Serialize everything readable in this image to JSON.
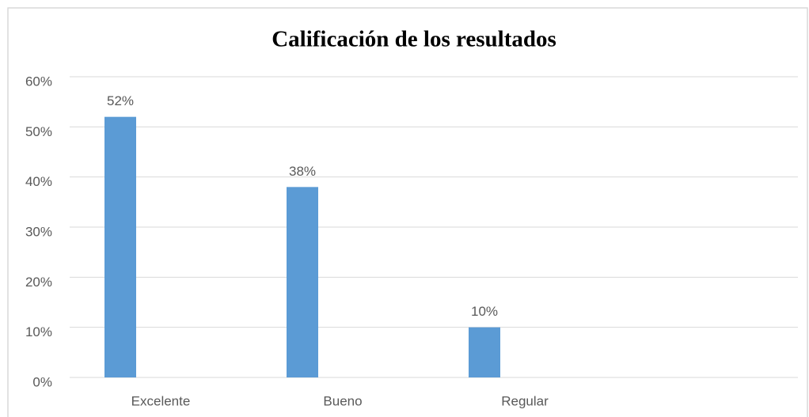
{
  "chart_data": {
    "type": "bar",
    "title": "Calificación de los resultados",
    "categories": [
      "Excelente",
      "Bueno",
      "Regular",
      null
    ],
    "values": [
      52,
      38,
      10,
      null
    ],
    "value_labels": [
      "52%",
      "38%",
      "10%",
      null
    ],
    "color": "#5b9bd5",
    "ylim": [
      0,
      60
    ],
    "yticks": [
      {
        "value": 0,
        "label": "0%"
      },
      {
        "value": 10,
        "label": "10%"
      },
      {
        "value": 20,
        "label": "20%"
      },
      {
        "value": 30,
        "label": "30%"
      },
      {
        "value": 40,
        "label": "40%"
      },
      {
        "value": 50,
        "label": "50%"
      },
      {
        "value": 60,
        "label": "60%"
      }
    ],
    "grid": true
  }
}
